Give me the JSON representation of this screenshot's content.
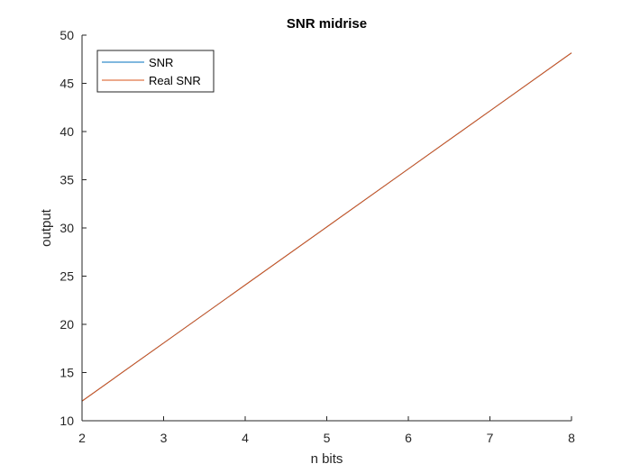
{
  "chart_data": {
    "type": "line",
    "title": "SNR midrise",
    "xlabel": "n bits",
    "ylabel": "output",
    "xlim": [
      2,
      8
    ],
    "ylim": [
      10,
      50
    ],
    "xticks": [
      "2",
      "3",
      "4",
      "5",
      "6",
      "7",
      "8"
    ],
    "yticks": [
      "10",
      "15",
      "20",
      "25",
      "30",
      "35",
      "40",
      "45",
      "50"
    ],
    "grid": false,
    "legend_position": "top-left",
    "series": [
      {
        "name": "SNR",
        "color": "#0072BD",
        "x": [
          2,
          3,
          4,
          5,
          6,
          7,
          8
        ],
        "y": [
          12.04,
          18.06,
          24.08,
          30.1,
          36.12,
          42.14,
          48.16
        ]
      },
      {
        "name": "Real SNR",
        "color": "#D95319",
        "x": [
          2,
          3,
          4,
          5,
          6,
          7,
          8
        ],
        "y": [
          12.04,
          18.06,
          24.08,
          30.1,
          36.12,
          42.14,
          48.16
        ]
      }
    ]
  }
}
